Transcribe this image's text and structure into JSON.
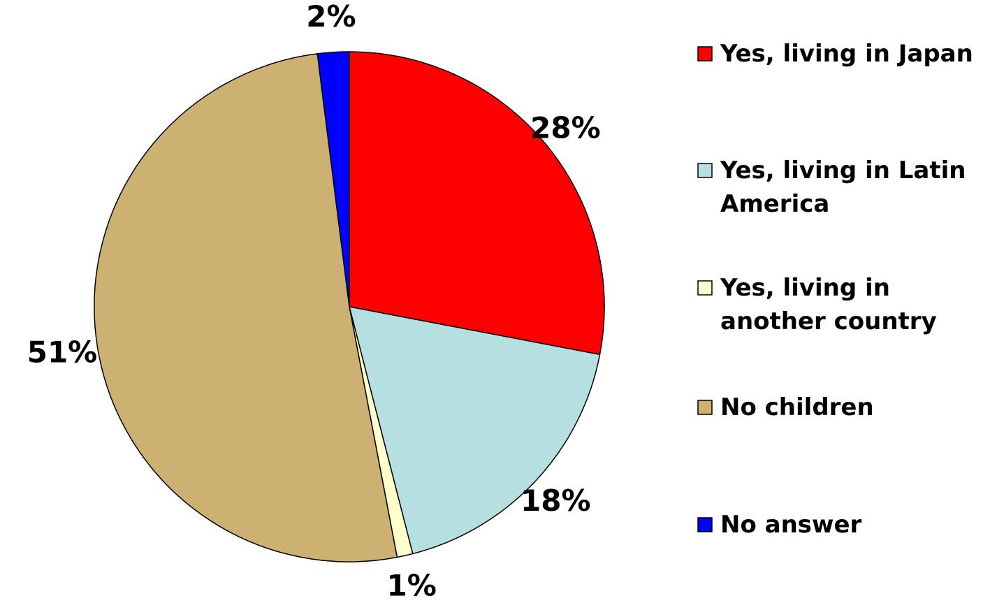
{
  "chart_data": {
    "type": "pie",
    "slices": [
      {
        "name": "Yes, living in Japan",
        "value": 28,
        "label": "28%",
        "color": "#FF0000"
      },
      {
        "name": "Yes, living in Latin America",
        "value": 18,
        "label": "18%",
        "color": "#B6DFE2"
      },
      {
        "name": "Yes, living in another country",
        "value": 1,
        "label": "1%",
        "color": "#FFFFCC"
      },
      {
        "name": "No children",
        "value": 51,
        "label": "51%",
        "color": "#CCB173"
      },
      {
        "name": "No answer",
        "value": 2,
        "label": "2%",
        "color": "#0000FF"
      }
    ],
    "legend": {
      "position": "right",
      "entries": [
        {
          "lines": [
            "Yes, living in Japan"
          ],
          "color": "#FF0000"
        },
        {
          "lines": [
            "Yes, living in Latin",
            "America"
          ],
          "color": "#B6DFE2"
        },
        {
          "lines": [
            "Yes, living in",
            "another country"
          ],
          "color": "#FFFFCC"
        },
        {
          "lines": [
            "No children"
          ],
          "color": "#CCB173"
        },
        {
          "lines": [
            "No answer"
          ],
          "color": "#0000FF"
        }
      ]
    }
  }
}
